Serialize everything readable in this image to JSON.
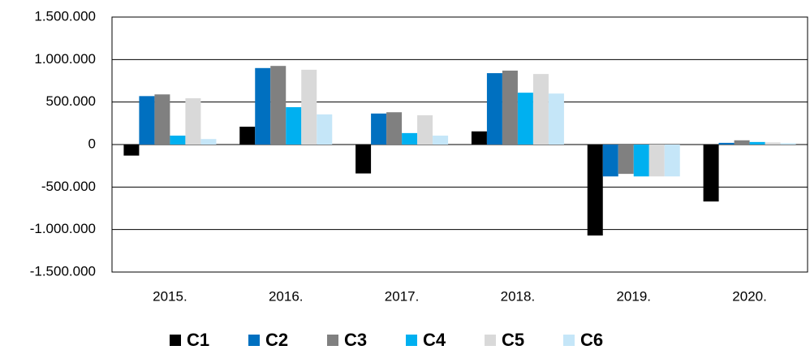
{
  "chart_data": {
    "type": "bar",
    "categories": [
      "2015.",
      "2016.",
      "2017.",
      "2018.",
      "2019.",
      "2020."
    ],
    "series": [
      {
        "name": "C1",
        "color": "#000000",
        "values": [
          -130000,
          210000,
          -340000,
          155000,
          -1070000,
          -670000
        ]
      },
      {
        "name": "C2",
        "color": "#0070c0",
        "values": [
          570000,
          900000,
          365000,
          840000,
          -375000,
          20000
        ]
      },
      {
        "name": "C3",
        "color": "#808080",
        "values": [
          590000,
          925000,
          380000,
          870000,
          -345000,
          50000
        ]
      },
      {
        "name": "C4",
        "color": "#00b0f0",
        "values": [
          105000,
          440000,
          135000,
          610000,
          -375000,
          30000
        ]
      },
      {
        "name": "C5",
        "color": "#d9d9d9",
        "values": [
          545000,
          880000,
          345000,
          830000,
          -375000,
          25000
        ]
      },
      {
        "name": "C6",
        "color": "#c5e6f8",
        "values": [
          65000,
          355000,
          105000,
          600000,
          -375000,
          15000
        ]
      }
    ],
    "ylim": [
      -1500000,
      1500000
    ],
    "yticks": [
      {
        "value": -1500000,
        "label": "-1.500.000"
      },
      {
        "value": -1000000,
        "label": "-1.000.000"
      },
      {
        "value": -500000,
        "label": "-500.000"
      },
      0,
      {
        "value": 500000,
        "label": "500.000"
      },
      {
        "value": 1000000,
        "label": "1.000.000"
      },
      {
        "value": 1500000,
        "label": "1.500.000"
      }
    ],
    "grid": true,
    "legend": "bottom"
  }
}
